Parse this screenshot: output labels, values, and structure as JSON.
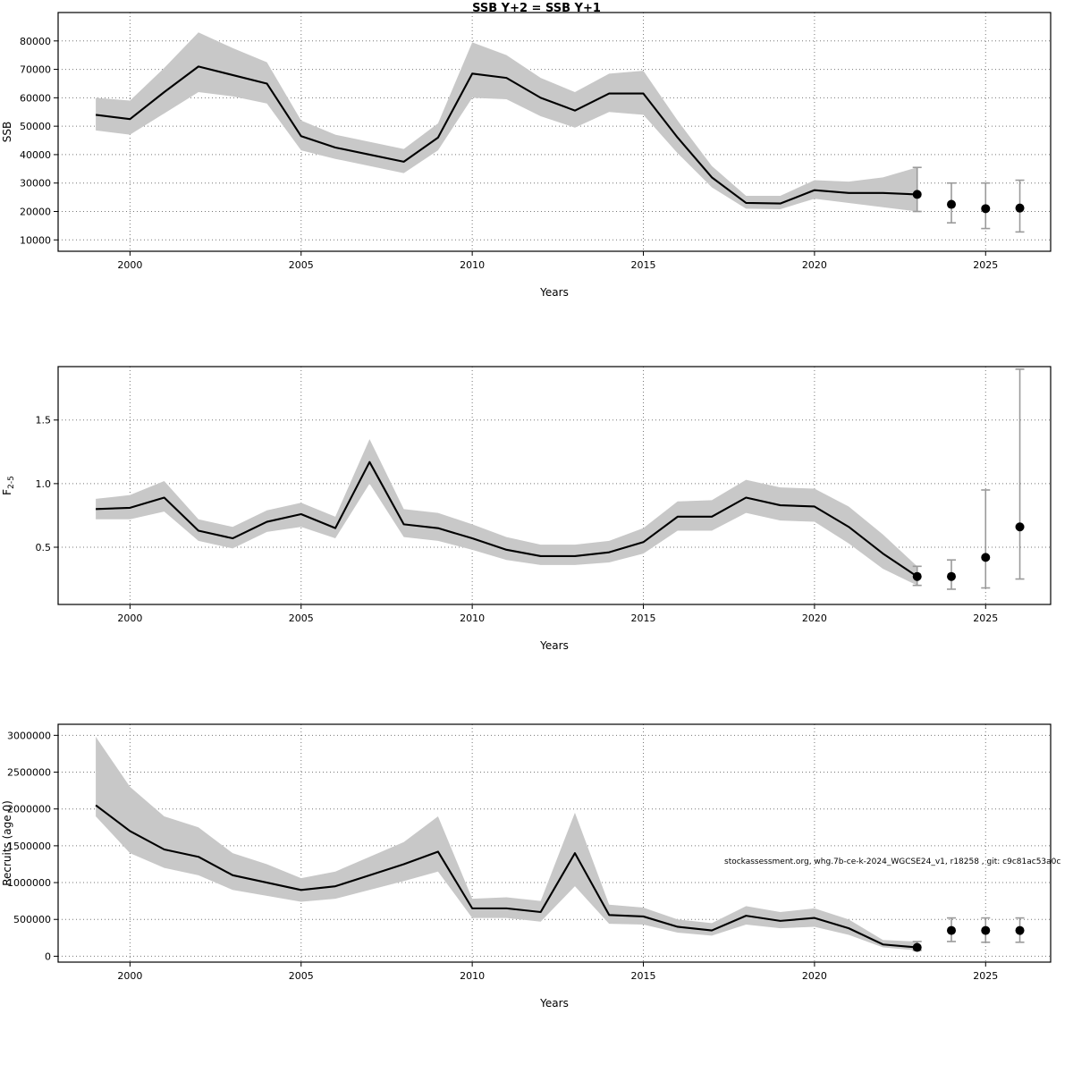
{
  "figure": {
    "title": "SSB Y+2 = SSB Y+1",
    "annotation": "stockassessment.org, whg.7b-ce-k-2024_WGCSE24_v1, r18258 , git: c9c81ac53a0c"
  },
  "chart_data": [
    {
      "type": "line",
      "name": "ssb",
      "title": "SSB Y+2 = SSB Y+1",
      "xlabel": "Years",
      "ylabel": "SSB",
      "ylabel_sub": "",
      "xlim": [
        1997.9,
        2026.9
      ],
      "ylim": [
        6000,
        90000
      ],
      "xticks": [
        2000,
        2005,
        2010,
        2015,
        2020,
        2025
      ],
      "xtick_labels": [
        "2000",
        "2005",
        "2010",
        "2015",
        "2020",
        "2025"
      ],
      "yticks": [
        10000,
        20000,
        30000,
        40000,
        50000,
        60000,
        70000,
        80000
      ],
      "ytick_labels": [
        "10000",
        "20000",
        "30000",
        "40000",
        "50000",
        "60000",
        "70000",
        "80000"
      ],
      "x": [
        1999,
        2000,
        2001,
        2002,
        2003,
        2004,
        2005,
        2006,
        2007,
        2008,
        2009,
        2010,
        2011,
        2012,
        2013,
        2014,
        2015,
        2016,
        2017,
        2018,
        2019,
        2020,
        2021,
        2022,
        2023,
        2024,
        2025,
        2026
      ],
      "median": [
        54000,
        52500,
        62000,
        71000,
        68000,
        65000,
        46500,
        42500,
        40000,
        37500,
        46000,
        68500,
        67000,
        60000,
        55500,
        61500,
        61500,
        46000,
        32000,
        23000,
        22800,
        27500,
        26500,
        26500,
        26000,
        22500,
        21000,
        21200
      ],
      "lower": [
        48500,
        47000,
        54500,
        62000,
        60500,
        58000,
        41500,
        38500,
        36000,
        33500,
        41500,
        60000,
        59500,
        53500,
        49500,
        55000,
        54000,
        40500,
        28500,
        21000,
        20800,
        24500,
        23000,
        21500,
        20000,
        16000,
        14000,
        12800
      ],
      "upper": [
        60000,
        59000,
        70500,
        83000,
        77500,
        72500,
        52000,
        47000,
        44500,
        42000,
        51000,
        79500,
        75000,
        67000,
        62000,
        68500,
        69500,
        52000,
        36000,
        25500,
        25500,
        31000,
        30500,
        32000,
        35500,
        30000,
        30000,
        31000
      ],
      "band_end": 2023,
      "dots_from": 2023,
      "band_color": "#c8c8c8",
      "line_color": "#000000",
      "errorbar_color": "#9a9a9a"
    },
    {
      "type": "line",
      "name": "f",
      "title": "",
      "xlabel": "Years",
      "ylabel": "F",
      "ylabel_sub": "2-5",
      "xlim": [
        1997.9,
        2026.9
      ],
      "ylim": [
        0.05,
        1.92
      ],
      "xticks": [
        2000,
        2005,
        2010,
        2015,
        2020,
        2025
      ],
      "xtick_labels": [
        "2000",
        "2005",
        "2010",
        "2015",
        "2020",
        "2025"
      ],
      "yticks": [
        0.5,
        1.0,
        1.5
      ],
      "ytick_labels": [
        "0.5",
        "1.0",
        "1.5"
      ],
      "x": [
        1999,
        2000,
        2001,
        2002,
        2003,
        2004,
        2005,
        2006,
        2007,
        2008,
        2009,
        2010,
        2011,
        2012,
        2013,
        2014,
        2015,
        2016,
        2017,
        2018,
        2019,
        2020,
        2021,
        2022,
        2023,
        2024,
        2025,
        2026
      ],
      "median": [
        0.8,
        0.81,
        0.89,
        0.63,
        0.57,
        0.7,
        0.76,
        0.65,
        1.17,
        0.68,
        0.65,
        0.57,
        0.48,
        0.43,
        0.43,
        0.46,
        0.54,
        0.74,
        0.74,
        0.89,
        0.83,
        0.82,
        0.66,
        0.45,
        0.27,
        0.27,
        0.42,
        0.66
      ],
      "lower": [
        0.72,
        0.72,
        0.78,
        0.55,
        0.49,
        0.62,
        0.66,
        0.57,
        1.0,
        0.58,
        0.55,
        0.48,
        0.4,
        0.36,
        0.36,
        0.38,
        0.45,
        0.63,
        0.63,
        0.77,
        0.71,
        0.7,
        0.53,
        0.33,
        0.2,
        0.17,
        0.18,
        0.25
      ],
      "upper": [
        0.88,
        0.91,
        1.02,
        0.72,
        0.66,
        0.79,
        0.85,
        0.74,
        1.35,
        0.8,
        0.77,
        0.68,
        0.58,
        0.52,
        0.52,
        0.55,
        0.65,
        0.86,
        0.87,
        1.03,
        0.97,
        0.96,
        0.82,
        0.6,
        0.35,
        0.4,
        0.95,
        1.9
      ],
      "band_end": 2023,
      "dots_from": 2023,
      "band_color": "#c8c8c8",
      "line_color": "#000000",
      "errorbar_color": "#9a9a9a"
    },
    {
      "type": "line",
      "name": "recruits",
      "title": "",
      "xlabel": "Years",
      "ylabel": "Recruits (age 0)",
      "ylabel_sub": "",
      "xlim": [
        1997.9,
        2026.9
      ],
      "ylim": [
        -80000,
        3150000
      ],
      "xticks": [
        2000,
        2005,
        2010,
        2015,
        2020,
        2025
      ],
      "xtick_labels": [
        "2000",
        "2005",
        "2010",
        "2015",
        "2020",
        "2025"
      ],
      "yticks": [
        0,
        500000,
        1000000,
        1500000,
        2000000,
        2500000,
        3000000
      ],
      "ytick_labels": [
        "0",
        "500000",
        "1000000",
        "1500000",
        "2000000",
        "2500000",
        "3000000"
      ],
      "x": [
        1999,
        2000,
        2001,
        2002,
        2003,
        2004,
        2005,
        2006,
        2007,
        2008,
        2009,
        2010,
        2011,
        2012,
        2013,
        2014,
        2015,
        2016,
        2017,
        2018,
        2019,
        2020,
        2021,
        2022,
        2023,
        2024,
        2025,
        2026
      ],
      "median": [
        2050000,
        1700000,
        1450000,
        1350000,
        1100000,
        1000000,
        900000,
        950000,
        1100000,
        1250000,
        1420000,
        650000,
        650000,
        600000,
        1400000,
        560000,
        540000,
        400000,
        350000,
        550000,
        480000,
        520000,
        380000,
        160000,
        120000,
        350000,
        350000,
        350000
      ],
      "lower": [
        1900000,
        1400000,
        1200000,
        1100000,
        900000,
        820000,
        740000,
        780000,
        900000,
        1020000,
        1150000,
        520000,
        520000,
        470000,
        950000,
        440000,
        430000,
        320000,
        280000,
        430000,
        380000,
        400000,
        290000,
        120000,
        80000,
        200000,
        190000,
        190000
      ],
      "upper": [
        2980000,
        2300000,
        1900000,
        1750000,
        1400000,
        1250000,
        1060000,
        1150000,
        1350000,
        1550000,
        1900000,
        780000,
        800000,
        750000,
        1950000,
        700000,
        660000,
        500000,
        450000,
        680000,
        600000,
        650000,
        500000,
        220000,
        200000,
        520000,
        520000,
        520000
      ],
      "band_end": 2023,
      "dots_from": 2023,
      "band_color": "#c8c8c8",
      "line_color": "#000000",
      "errorbar_color": "#9a9a9a"
    }
  ]
}
